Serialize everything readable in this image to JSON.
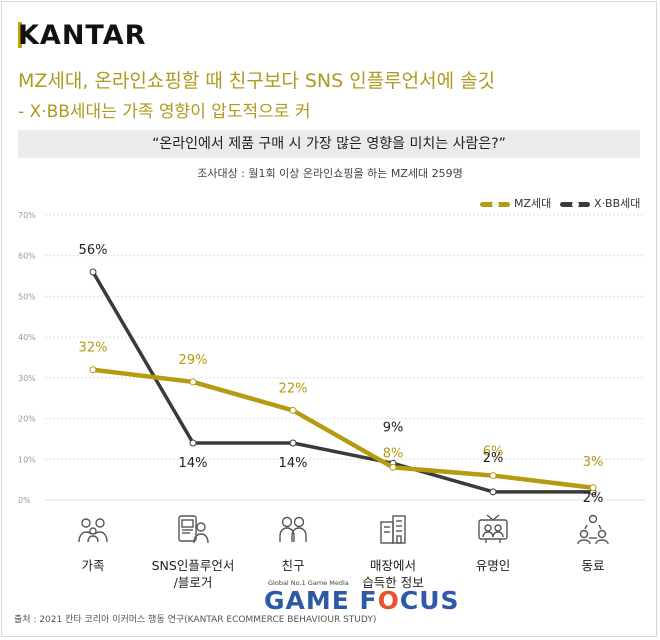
{
  "brand": {
    "logo_text": "KANTAR"
  },
  "header": {
    "headline": "MZ세대, 온라인쇼핑할 때 친구보다 SNS 인플루언서에 솔깃",
    "subline": "- X·BB세대는 가족 영향이 압도적으로 커",
    "question": "“온라인에서 제품 구매 시 가장 많은 영향을 미치는 사람은?”",
    "survey": "조사대상 : 월1회 이상 온라인쇼핑을 하는 MZ세대 259명"
  },
  "colors": {
    "mz": "#b59a12",
    "xbb": "#3a3a3a",
    "accent": "#c8a200",
    "grid": "#dcdcdc"
  },
  "chart_data": {
    "type": "line",
    "categories": [
      "가족",
      "SNS인플루언서/블로거",
      "친구",
      "매장에서 습득한 정보",
      "유명인",
      "동료"
    ],
    "category_lines": [
      [
        "가족"
      ],
      [
        "SNS인플루언서",
        "/블로거"
      ],
      [
        "친구"
      ],
      [
        "매장에서",
        "습득한 정보"
      ],
      [
        "유명인"
      ],
      [
        "동료"
      ]
    ],
    "category_icons": [
      "family-icon",
      "influencer-phone-icon",
      "friends-icon",
      "store-building-icon",
      "tv-celebrity-icon",
      "coworkers-icon"
    ],
    "series": [
      {
        "name": "MZ세대",
        "values": [
          32,
          29,
          22,
          8,
          6,
          3
        ],
        "labels": [
          "32%",
          "29%",
          "22%",
          "8%",
          "6%",
          "3%"
        ]
      },
      {
        "name": "X·BB세대",
        "values": [
          56,
          14,
          14,
          9,
          2,
          2
        ],
        "labels": [
          "56%",
          "14%",
          "14%",
          "9%",
          "2%",
          "2%"
        ]
      }
    ],
    "ylim": [
      0,
      70
    ],
    "yticks": [
      "0%",
      "10%",
      "20%",
      "30%",
      "40%",
      "50%",
      "60%",
      "70%"
    ],
    "grid": true,
    "legend": "top-right"
  },
  "footer": {
    "source": "출처 : 2021 칸타 코리아 이커머스 행동 연구(KANTAR ECOMMERCE BEHAVIOUR STUDY)"
  },
  "watermark": {
    "tagline": "Global No.1 Game Media",
    "brand_pre": "GAME F",
    "brand_o": "O",
    "brand_post": "CUS"
  }
}
